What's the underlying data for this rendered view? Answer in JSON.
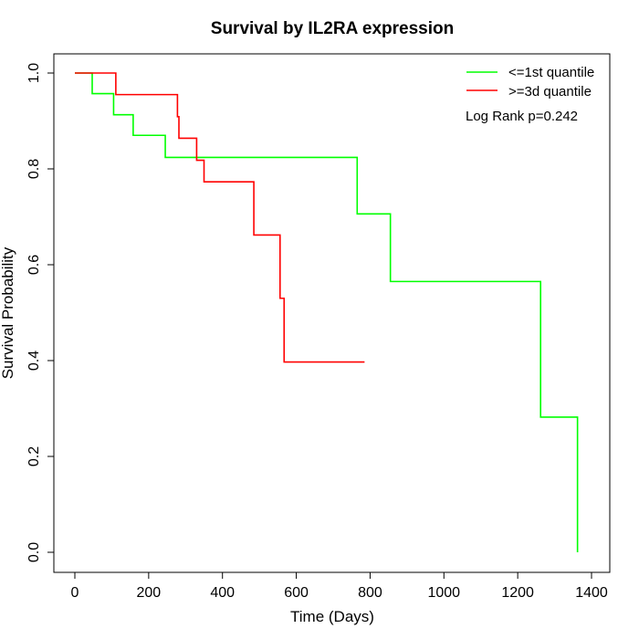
{
  "chart_data": {
    "type": "line",
    "title": "Survival by IL2RA expression",
    "xlabel": "Time (Days)",
    "ylabel": "Survival Probability",
    "xlim": [
      0,
      1400
    ],
    "ylim": [
      0,
      1
    ],
    "x_ticks": [
      "0",
      "200",
      "400",
      "600",
      "800",
      "1000",
      "1200",
      "1400"
    ],
    "x_tick_values": [
      0,
      200,
      400,
      600,
      800,
      1000,
      1200,
      1400
    ],
    "y_ticks": [
      "0.0",
      "0.2",
      "0.4",
      "0.6",
      "0.8",
      "1.0"
    ],
    "y_tick_values": [
      0,
      0.2,
      0.4,
      0.6,
      0.8,
      1.0
    ],
    "grid": false,
    "legend_position": "top-right",
    "annotation": "Log Rank p=0.242",
    "series": [
      {
        "name": "<=1st quantile",
        "color": "#00ff00",
        "step": true,
        "points": [
          [
            0,
            1.0
          ],
          [
            47,
            0.957
          ],
          [
            105,
            0.913
          ],
          [
            158,
            0.87
          ],
          [
            245,
            0.824
          ],
          [
            765,
            0.706
          ],
          [
            855,
            0.565
          ],
          [
            1262,
            0.282
          ],
          [
            1362,
            0.0
          ]
        ]
      },
      {
        "name": ">=3d quantile",
        "color": "#ff0000",
        "step": true,
        "end_x": 785,
        "points": [
          [
            0,
            1.0
          ],
          [
            111,
            0.955
          ],
          [
            278,
            0.909
          ],
          [
            282,
            0.864
          ],
          [
            330,
            0.818
          ],
          [
            350,
            0.773
          ],
          [
            485,
            0.662
          ],
          [
            556,
            0.53
          ],
          [
            567,
            0.397
          ]
        ]
      }
    ]
  }
}
